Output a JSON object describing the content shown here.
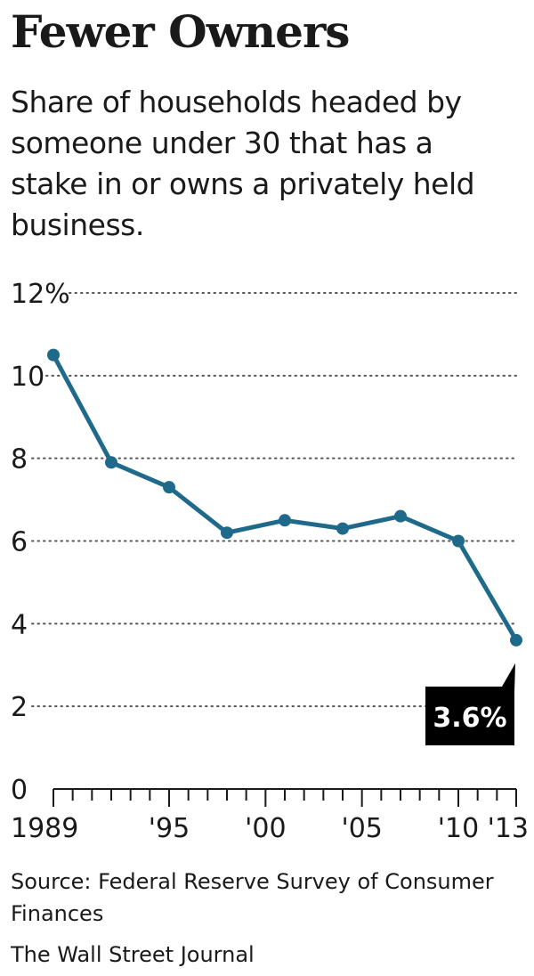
{
  "title": "Fewer Owners",
  "subtitle": "Share of households headed by someone under 30 that has a stake in or owns a privately held business.",
  "source": "Source: Federal Reserve Survey of Consumer Finances",
  "credit": "The Wall Street Journal",
  "colors": {
    "line": "#1f6a8a",
    "callout": "#000000",
    "text": "#1a1a1a",
    "grid": "#555555"
  },
  "chart_data": {
    "type": "line",
    "title": "Fewer Owners",
    "xlabel": "",
    "ylabel": "",
    "ylim": [
      0,
      12
    ],
    "xlim": [
      1989,
      2013
    ],
    "yticks": [
      0,
      2,
      4,
      6,
      8,
      10,
      12
    ],
    "ytick_labels": [
      "0",
      "2",
      "4",
      "6",
      "8",
      "10",
      "12%"
    ],
    "xticks": [
      1989,
      1995,
      2000,
      2005,
      2010,
      2013
    ],
    "xtick_labels": [
      "1989",
      "'95",
      "'00",
      "'05",
      "'10",
      "'13"
    ],
    "grid": "horizontal-dotted",
    "x": [
      1989,
      1992,
      1995,
      1998,
      2001,
      2004,
      2007,
      2010,
      2013
    ],
    "values": [
      10.5,
      7.9,
      7.3,
      6.2,
      6.5,
      6.3,
      6.6,
      6.0,
      3.6
    ],
    "annotation": {
      "text": "3.6%",
      "x": 2013,
      "y": 3.6
    }
  }
}
